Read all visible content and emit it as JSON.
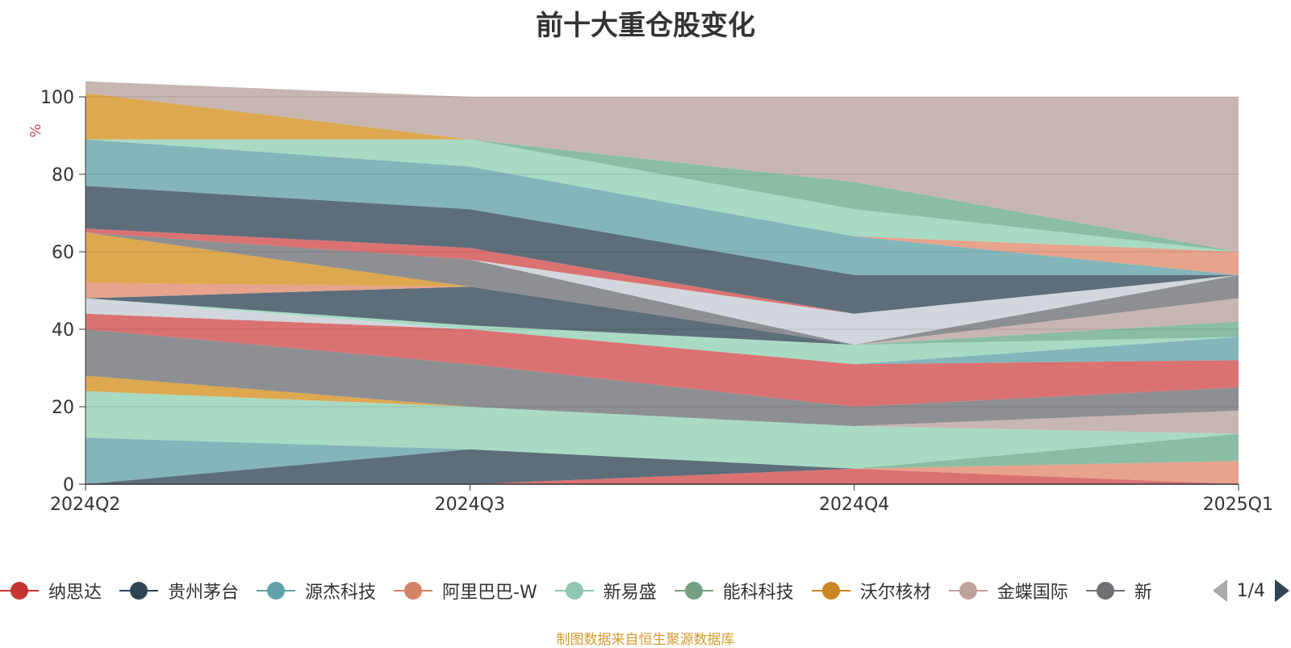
{
  "chart_data": {
    "type": "area",
    "stacked": true,
    "title": "前十大重仓股变化",
    "ylabel": "%",
    "ylim": [
      0,
      100
    ],
    "yticks": [
      0,
      20,
      40,
      60,
      80,
      100
    ],
    "grid": true,
    "legend_position": "bottom",
    "categories": [
      "2024Q2",
      "2024Q3",
      "2024Q4",
      "2025Q1"
    ],
    "series": [
      {
        "name": "",
        "color": "#d14a4a",
        "values": [
          0,
          0,
          4,
          0
        ]
      },
      {
        "name": "",
        "color": "#e0896b",
        "values": [
          0,
          0,
          0,
          6
        ]
      },
      {
        "name": "",
        "color": "#2f4554",
        "values": [
          0,
          9,
          0,
          0
        ]
      },
      {
        "name": "",
        "color": "#6aaa8c",
        "values": [
          0,
          0,
          0,
          7
        ]
      },
      {
        "name": "",
        "color": "#61a0a8",
        "values": [
          12,
          0,
          0,
          0
        ]
      },
      {
        "name": "",
        "color": "#91d0b4",
        "values": [
          12,
          11,
          11,
          0
        ]
      },
      {
        "name": "",
        "color": "#d48f1e",
        "values": [
          4,
          0,
          0,
          0
        ]
      },
      {
        "name": "",
        "color": "#b9a29c",
        "values": [
          0,
          0,
          0,
          6
        ]
      },
      {
        "name": "",
        "color": "#6e7074",
        "values": [
          12,
          11,
          5,
          6
        ]
      },
      {
        "name": "",
        "color": "#d14a4a",
        "values": [
          4,
          9,
          11,
          7
        ]
      },
      {
        "name": "",
        "color": "#61a0a8",
        "values": [
          0,
          0,
          0,
          6
        ]
      },
      {
        "name": "",
        "color": "#91d0b4",
        "values": [
          0,
          0,
          5,
          0
        ]
      },
      {
        "name": "",
        "color": "#6aaa8c",
        "values": [
          0,
          0,
          0,
          4
        ]
      },
      {
        "name": "",
        "color": "#c4ccd3",
        "values": [
          4,
          0,
          0,
          0
        ]
      },
      {
        "name": "",
        "color": "#91d0b4",
        "values": [
          0,
          1,
          0,
          0
        ]
      },
      {
        "name": "",
        "color": "#2f4554",
        "values": [
          0,
          10,
          0,
          0
        ]
      },
      {
        "name": "",
        "color": "#b9a29c",
        "values": [
          0,
          0,
          0,
          6
        ]
      },
      {
        "name": "",
        "color": "#e0896b",
        "values": [
          4,
          0,
          0,
          0
        ]
      },
      {
        "name": "",
        "color": "#d48f1e",
        "values": [
          13,
          0,
          0,
          0
        ]
      },
      {
        "name": "",
        "color": "#6e7074",
        "values": [
          0,
          7,
          0,
          6
        ]
      },
      {
        "name": "",
        "color": "#c4ccd3",
        "values": [
          0,
          0,
          8,
          0
        ]
      },
      {
        "name": "",
        "color": "#d14a4a",
        "values": [
          1,
          3,
          0,
          0
        ]
      },
      {
        "name": "",
        "color": "#2f4554",
        "values": [
          11,
          10,
          10,
          0
        ]
      },
      {
        "name": "",
        "color": "#61a0a8",
        "values": [
          12,
          11,
          10,
          0
        ]
      },
      {
        "name": "",
        "color": "#e0896b",
        "values": [
          0,
          0,
          0,
          6
        ]
      },
      {
        "name": "",
        "color": "#91d0b4",
        "values": [
          0,
          7,
          7,
          0
        ]
      },
      {
        "name": "",
        "color": "#d48f1e",
        "values": [
          12,
          0,
          0,
          0
        ]
      },
      {
        "name": "",
        "color": "#6aaa8c",
        "values": [
          0,
          0,
          7,
          0
        ]
      },
      {
        "name": "",
        "color": "#b9a29c",
        "values": [
          3,
          11,
          22,
          40
        ]
      }
    ]
  },
  "legend": {
    "items": [
      {
        "label": "纳思达",
        "color": "#c23531"
      },
      {
        "label": "贵州茅台",
        "color": "#2f4554"
      },
      {
        "label": "源杰科技",
        "color": "#61a0a8"
      },
      {
        "label": "阿里巴巴-W",
        "color": "#d48265"
      },
      {
        "label": "新易盛",
        "color": "#91c7ae"
      },
      {
        "label": "能科科技",
        "color": "#749f83"
      },
      {
        "label": "沃尔核材",
        "color": "#ca8622"
      },
      {
        "label": "金蝶国际",
        "color": "#bda29a"
      },
      {
        "label": "新",
        "color": "#6e7074"
      }
    ],
    "page": "1/4"
  },
  "source": "制图数据来自恒生聚源数据库"
}
